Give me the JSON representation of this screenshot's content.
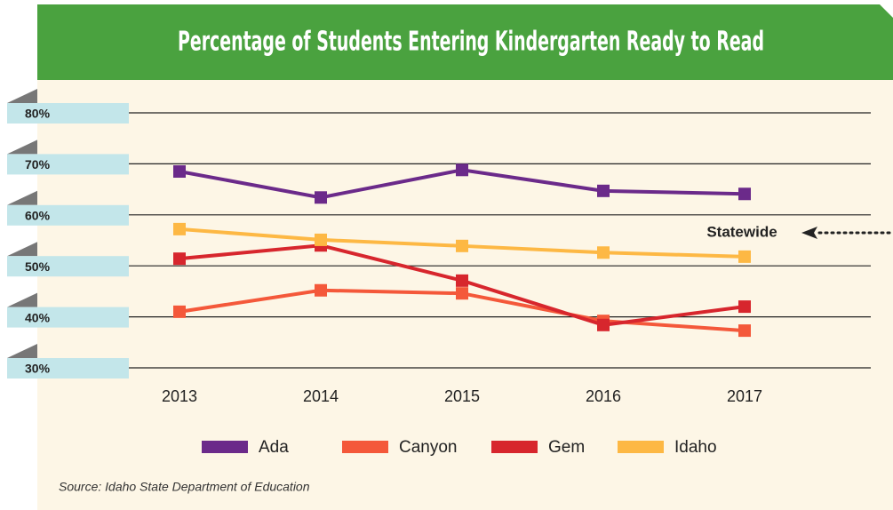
{
  "chart_data": {
    "type": "line",
    "title": "Percentage of Students Entering Kindergarten Ready to Read",
    "categories": [
      "2013",
      "2014",
      "2015",
      "2016",
      "2017"
    ],
    "series": [
      {
        "name": "Ada",
        "color": "#6b2a8a",
        "values": [
          68.5,
          63.4,
          68.8,
          64.7,
          64.1
        ]
      },
      {
        "name": "Canyon",
        "color": "#f4583a",
        "values": [
          41.0,
          45.2,
          44.6,
          39.2,
          37.3
        ]
      },
      {
        "name": "Gem",
        "color": "#d7262d",
        "values": [
          51.4,
          54.0,
          47.1,
          38.4,
          42.0
        ]
      },
      {
        "name": "Idaho",
        "color": "#fdb844",
        "values": [
          57.2,
          55.1,
          53.9,
          52.6,
          51.8
        ]
      }
    ],
    "ylim": [
      30,
      80
    ],
    "yticks": [
      {
        "value": 80,
        "label": "80%"
      },
      {
        "value": 70,
        "label": "70%"
      },
      {
        "value": 60,
        "label": "60%"
      },
      {
        "value": 50,
        "label": "50%"
      },
      {
        "value": 40,
        "label": "40%"
      },
      {
        "value": 30,
        "label": "30%"
      }
    ],
    "grid": true,
    "annotation": "Statewide",
    "source": "Source: Idaho State Department of Education"
  }
}
